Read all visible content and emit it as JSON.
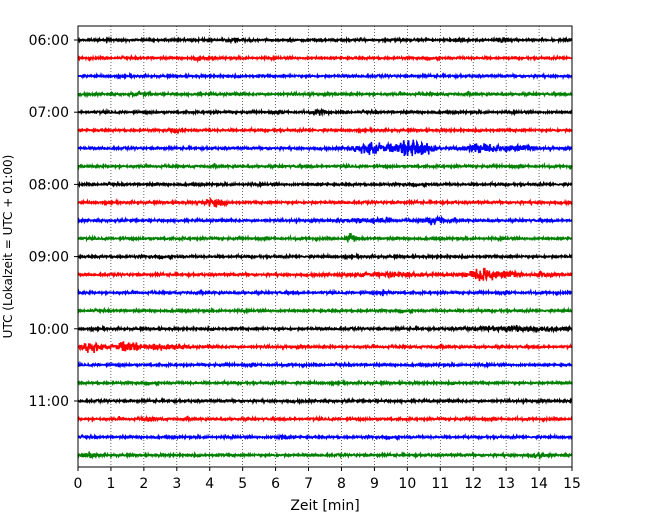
{
  "chart_data": {
    "type": "line",
    "title": "",
    "xlabel": "Zeit  [min]",
    "ylabel": "UTC (Lokalzeit = UTC + 01:00)",
    "xlim": [
      0,
      15
    ],
    "x_ticks": [
      0,
      1,
      2,
      3,
      4,
      5,
      6,
      7,
      8,
      9,
      10,
      11,
      12,
      13,
      14,
      15
    ],
    "x_tick_labels": [
      "0",
      "1",
      "2",
      "3",
      "4",
      "5",
      "6",
      "7",
      "8",
      "9",
      "10",
      "11",
      "12",
      "13",
      "14",
      "15"
    ],
    "y_tick_labels": [
      "06:00",
      "07:00",
      "08:00",
      "09:00",
      "10:00",
      "11:00"
    ],
    "y_tick_rows": [
      0,
      4,
      8,
      12,
      16,
      20
    ],
    "grid": "vertical-dotted",
    "colors": {
      "cycle": [
        "#000000",
        "#ff0000",
        "#0000ff",
        "#008000"
      ],
      "grid": "#000000",
      "frame": "#000000"
    },
    "series": [
      {
        "start": "06:00",
        "color": "#000000",
        "events": [
          [
            4.8,
            0.5,
            0.15
          ],
          [
            11.6,
            0.5,
            0.15
          ],
          [
            12.9,
            0.7,
            0.15
          ]
        ]
      },
      {
        "start": "06:15",
        "color": "#ff0000",
        "events": [
          [
            3.7,
            0.3,
            0.2
          ]
        ]
      },
      {
        "start": "06:30",
        "color": "#0000ff",
        "events": []
      },
      {
        "start": "06:45",
        "color": "#008000",
        "events": [
          [
            1.9,
            0.3,
            0.2
          ]
        ]
      },
      {
        "start": "07:00",
        "color": "#000000",
        "events": [
          [
            7.4,
            0.5,
            0.2
          ]
        ]
      },
      {
        "start": "07:15",
        "color": "#ff0000",
        "events": [
          [
            3.0,
            0.3,
            0.2
          ]
        ]
      },
      {
        "start": "07:30",
        "color": "#0000ff",
        "events": [
          [
            8.8,
            1.0,
            0.45
          ],
          [
            9.9,
            1.2,
            0.6
          ],
          [
            10.4,
            1.1,
            0.4
          ],
          [
            12.3,
            1.0,
            0.5
          ],
          [
            13.3,
            0.8,
            0.4
          ]
        ]
      },
      {
        "start": "07:45",
        "color": "#008000",
        "events": []
      },
      {
        "start": "08:00",
        "color": "#000000",
        "events": []
      },
      {
        "start": "08:15",
        "color": "#ff0000",
        "events": [
          [
            4.1,
            0.8,
            0.3
          ]
        ]
      },
      {
        "start": "08:30",
        "color": "#0000ff",
        "events": [
          [
            8.8,
            0.5,
            0.6
          ],
          [
            10.8,
            0.8,
            0.3
          ]
        ]
      },
      {
        "start": "08:45",
        "color": "#008000",
        "events": [
          [
            8.3,
            0.8,
            0.15
          ]
        ]
      },
      {
        "start": "09:00",
        "color": "#000000",
        "events": []
      },
      {
        "start": "09:15",
        "color": "#ff0000",
        "events": [
          [
            9.5,
            0.4,
            1.2
          ],
          [
            12.3,
            1.6,
            0.4
          ],
          [
            13.0,
            0.9,
            0.3
          ],
          [
            14.1,
            0.6,
            0.15
          ]
        ]
      },
      {
        "start": "09:30",
        "color": "#0000ff",
        "events": [
          [
            9.3,
            0.6,
            0.15
          ]
        ]
      },
      {
        "start": "09:45",
        "color": "#008000",
        "events": []
      },
      {
        "start": "10:00",
        "color": "#000000",
        "events": [
          [
            13.4,
            0.5,
            1.2
          ]
        ]
      },
      {
        "start": "10:15",
        "color": "#ff0000",
        "events": [
          [
            0.4,
            1.1,
            0.3
          ],
          [
            1.5,
            1.2,
            0.35
          ],
          [
            2.4,
            0.6,
            0.3
          ],
          [
            3.0,
            0.5,
            0.25
          ]
        ]
      },
      {
        "start": "10:30",
        "color": "#0000ff",
        "events": []
      },
      {
        "start": "10:45",
        "color": "#008000",
        "events": []
      },
      {
        "start": "11:00",
        "color": "#000000",
        "events": []
      },
      {
        "start": "11:15",
        "color": "#ff0000",
        "events": [
          [
            2.2,
            0.3,
            0.2
          ]
        ]
      },
      {
        "start": "11:30",
        "color": "#0000ff",
        "events": [
          [
            6.2,
            0.5,
            0.15
          ]
        ]
      },
      {
        "start": "11:45",
        "color": "#008000",
        "events": [
          [
            0.4,
            0.4,
            0.2
          ],
          [
            14.0,
            0.4,
            0.2
          ]
        ]
      }
    ]
  }
}
